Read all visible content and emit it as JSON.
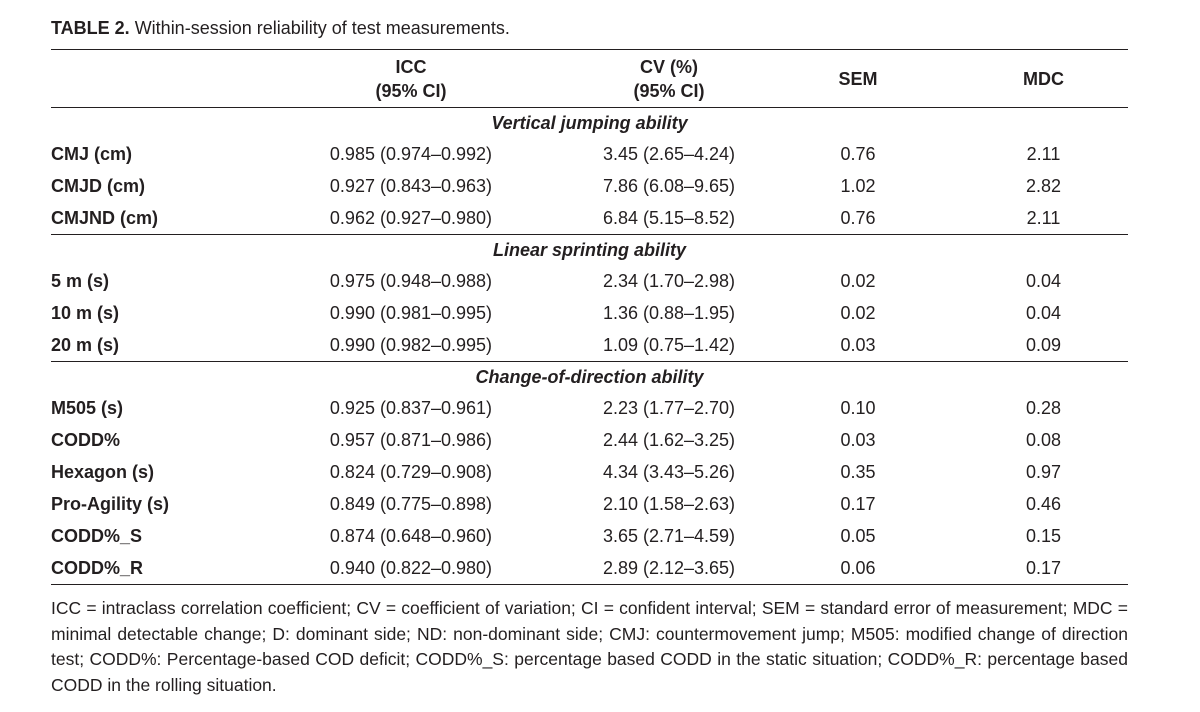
{
  "caption": {
    "label": "TABLE 2.",
    "text": "Within-session reliability of test measurements."
  },
  "table": {
    "headers": [
      {
        "line1": "",
        "line2": ""
      },
      {
        "line1": "ICC",
        "line2": "(95% CI)"
      },
      {
        "line1": "CV (%)",
        "line2": "(95% CI)"
      },
      {
        "line1": "SEM",
        "line2": ""
      },
      {
        "line1": "MDC",
        "line2": ""
      }
    ],
    "sections": [
      {
        "title": "Vertical jumping ability",
        "rows": [
          {
            "measure": "CMJ (cm)",
            "icc": "0.985 (0.974–0.992)",
            "cv": "3.45 (2.65–4.24)",
            "sem": "0.76",
            "mdc": "2.11"
          },
          {
            "measure": "CMJD (cm)",
            "icc": "0.927 (0.843–0.963)",
            "cv": "7.86 (6.08–9.65)",
            "sem": "1.02",
            "mdc": "2.82"
          },
          {
            "measure": "CMJND (cm)",
            "icc": "0.962 (0.927–0.980)",
            "cv": "6.84 (5.15–8.52)",
            "sem": "0.76",
            "mdc": "2.11"
          }
        ]
      },
      {
        "title": "Linear sprinting ability",
        "rows": [
          {
            "measure": "5 m (s)",
            "icc": "0.975 (0.948–0.988)",
            "cv": "2.34 (1.70–2.98)",
            "sem": "0.02",
            "mdc": "0.04"
          },
          {
            "measure": "10 m (s)",
            "icc": "0.990 (0.981–0.995)",
            "cv": "1.36 (0.88–1.95)",
            "sem": "0.02",
            "mdc": "0.04"
          },
          {
            "measure": "20 m (s)",
            "icc": "0.990 (0.982–0.995)",
            "cv": "1.09 (0.75–1.42)",
            "sem": "0.03",
            "mdc": "0.09"
          }
        ]
      },
      {
        "title": "Change-of-direction ability",
        "rows": [
          {
            "measure": "M505 (s)",
            "icc": "0.925 (0.837–0.961)",
            "cv": "2.23 (1.77–2.70)",
            "sem": "0.10",
            "mdc": "0.28"
          },
          {
            "measure": "CODD%",
            "icc": "0.957 (0.871–0.986)",
            "cv": "2.44 (1.62–3.25)",
            "sem": "0.03",
            "mdc": "0.08"
          },
          {
            "measure": "Hexagon (s)",
            "icc": "0.824 (0.729–0.908)",
            "cv": "4.34 (3.43–5.26)",
            "sem": "0.35",
            "mdc": "0.97"
          },
          {
            "measure": "Pro-Agility (s)",
            "icc": "0.849 (0.775–0.898)",
            "cv": "2.10 (1.58–2.63)",
            "sem": "0.17",
            "mdc": "0.46"
          },
          {
            "measure": "CODD%_S",
            "icc": "0.874 (0.648–0.960)",
            "cv": "3.65 (2.71–4.59)",
            "sem": "0.05",
            "mdc": "0.15"
          },
          {
            "measure": "CODD%_R",
            "icc": "0.940 (0.822–0.980)",
            "cv": "2.89 (2.12–3.65)",
            "sem": "0.06",
            "mdc": "0.17"
          }
        ]
      }
    ]
  },
  "footnote": "ICC = intraclass correlation coefficient; CV = coefficient of variation; CI = confident interval; SEM = standard error of measurement; MDC = minimal detectable change; D: dominant side; ND: non-dominant side; CMJ: countermovement jump; M505: modified change of direction test; CODD%: Percentage-based COD deficit; CODD%_S: percentage based CODD in the static situation; CODD%_R: percentage based CODD in the rolling situation."
}
